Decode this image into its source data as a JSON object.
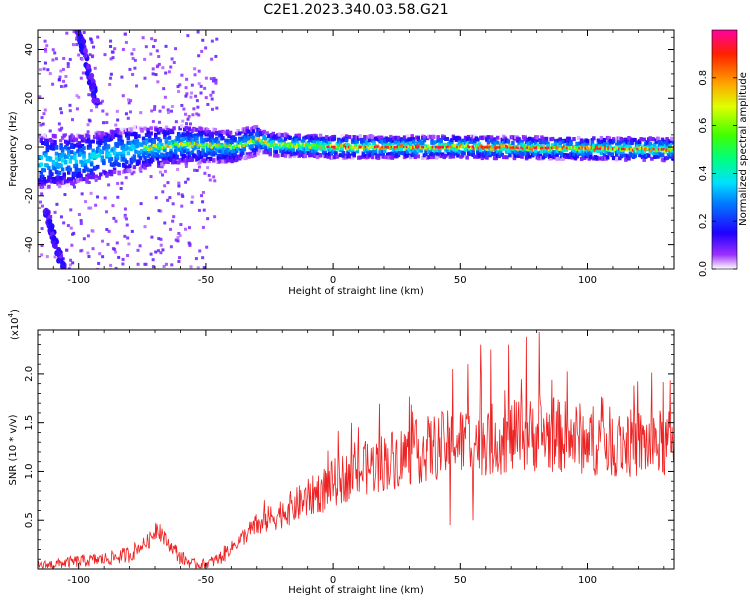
{
  "title": "C2E1.2023.340.03.58.G21",
  "colors": {
    "snr_line": "#ee2222",
    "axis": "#000000",
    "background": "#ffffff"
  },
  "chart_data": [
    {
      "type": "heatmap",
      "xlabel": "Height of straight line (km)",
      "ylabel": "Frequency (Hz)",
      "xlim": [
        -116,
        134
      ],
      "ylim": [
        -50,
        48
      ],
      "xticks": [
        "-100",
        "-50",
        "0",
        "50",
        "100"
      ],
      "xtick_values": [
        -100,
        -50,
        0,
        50,
        100
      ],
      "yticks": [
        "-40",
        "-20",
        "0",
        "20",
        "40"
      ],
      "ytick_values": [
        -40,
        -20,
        0,
        20,
        40
      ],
      "colorbar": {
        "label": "Normalized spectral amplitude",
        "ticks": [
          "0.0",
          "0.2",
          "0.4",
          "0.6",
          "0.8"
        ],
        "tick_values": [
          0.0,
          0.2,
          0.4,
          0.6,
          0.8
        ],
        "range": [
          0,
          1
        ],
        "colormap": "rainbow"
      },
      "ridge": {
        "center_frequency": [
          [
            -116,
            -6
          ],
          [
            -100,
            -5
          ],
          [
            -80,
            -1
          ],
          [
            -60,
            1
          ],
          [
            -40,
            0
          ],
          [
            -30,
            3
          ],
          [
            -25,
            1
          ],
          [
            0,
            0
          ],
          [
            50,
            0
          ],
          [
            134,
            -1
          ]
        ],
        "peak_start_x": -75,
        "peak_end_x": 134
      },
      "aliased_lines": [
        {
          "x": [
            -100,
            -93
          ],
          "y": [
            48,
            18
          ]
        },
        {
          "x": [
            -113,
            -106
          ],
          "y": [
            -26,
            -50
          ]
        }
      ]
    },
    {
      "type": "line",
      "xlabel": "Height of straight line (km)",
      "ylabel": "SNR (10 * v/v)",
      "yscale_label": "(x10",
      "yscale_exp": "4",
      "yscale_close": ")",
      "xlim": [
        -116,
        134
      ],
      "ylim": [
        0.0,
        2.45
      ],
      "xticks": [
        "-100",
        "-50",
        "0",
        "50",
        "100"
      ],
      "xtick_values": [
        -100,
        -50,
        0,
        50,
        100
      ],
      "yticks": [
        "0.5",
        "1.0",
        "1.5",
        "2.0"
      ],
      "ytick_values": [
        0.5,
        1.0,
        1.5,
        2.0
      ],
      "series": [
        {
          "envelope_x": [
            -116,
            -100,
            -90,
            -80,
            -72,
            -69,
            -66,
            -60,
            -55,
            -50,
            -45,
            -40,
            -30,
            -20,
            -10,
            0,
            10,
            20,
            30,
            40,
            50,
            60,
            70,
            80,
            90,
            100,
            110,
            120,
            134
          ],
          "envelope_y": [
            0.03,
            0.08,
            0.1,
            0.15,
            0.3,
            0.45,
            0.3,
            0.12,
            0.05,
            0.05,
            0.1,
            0.22,
            0.45,
            0.58,
            0.72,
            0.88,
            1.0,
            1.1,
            1.18,
            1.25,
            1.3,
            1.32,
            1.35,
            1.38,
            1.36,
            1.33,
            1.3,
            1.28,
            1.28
          ],
          "spikes": [
            [
              47,
              2.05
            ],
            [
              53,
              2.1
            ],
            [
              58,
              2.3
            ],
            [
              62,
              2.25
            ],
            [
              69,
              2.3
            ],
            [
              76,
              2.38
            ],
            [
              81,
              2.43
            ],
            [
              46,
              0.45
            ],
            [
              55,
              0.5
            ]
          ]
        }
      ]
    }
  ]
}
